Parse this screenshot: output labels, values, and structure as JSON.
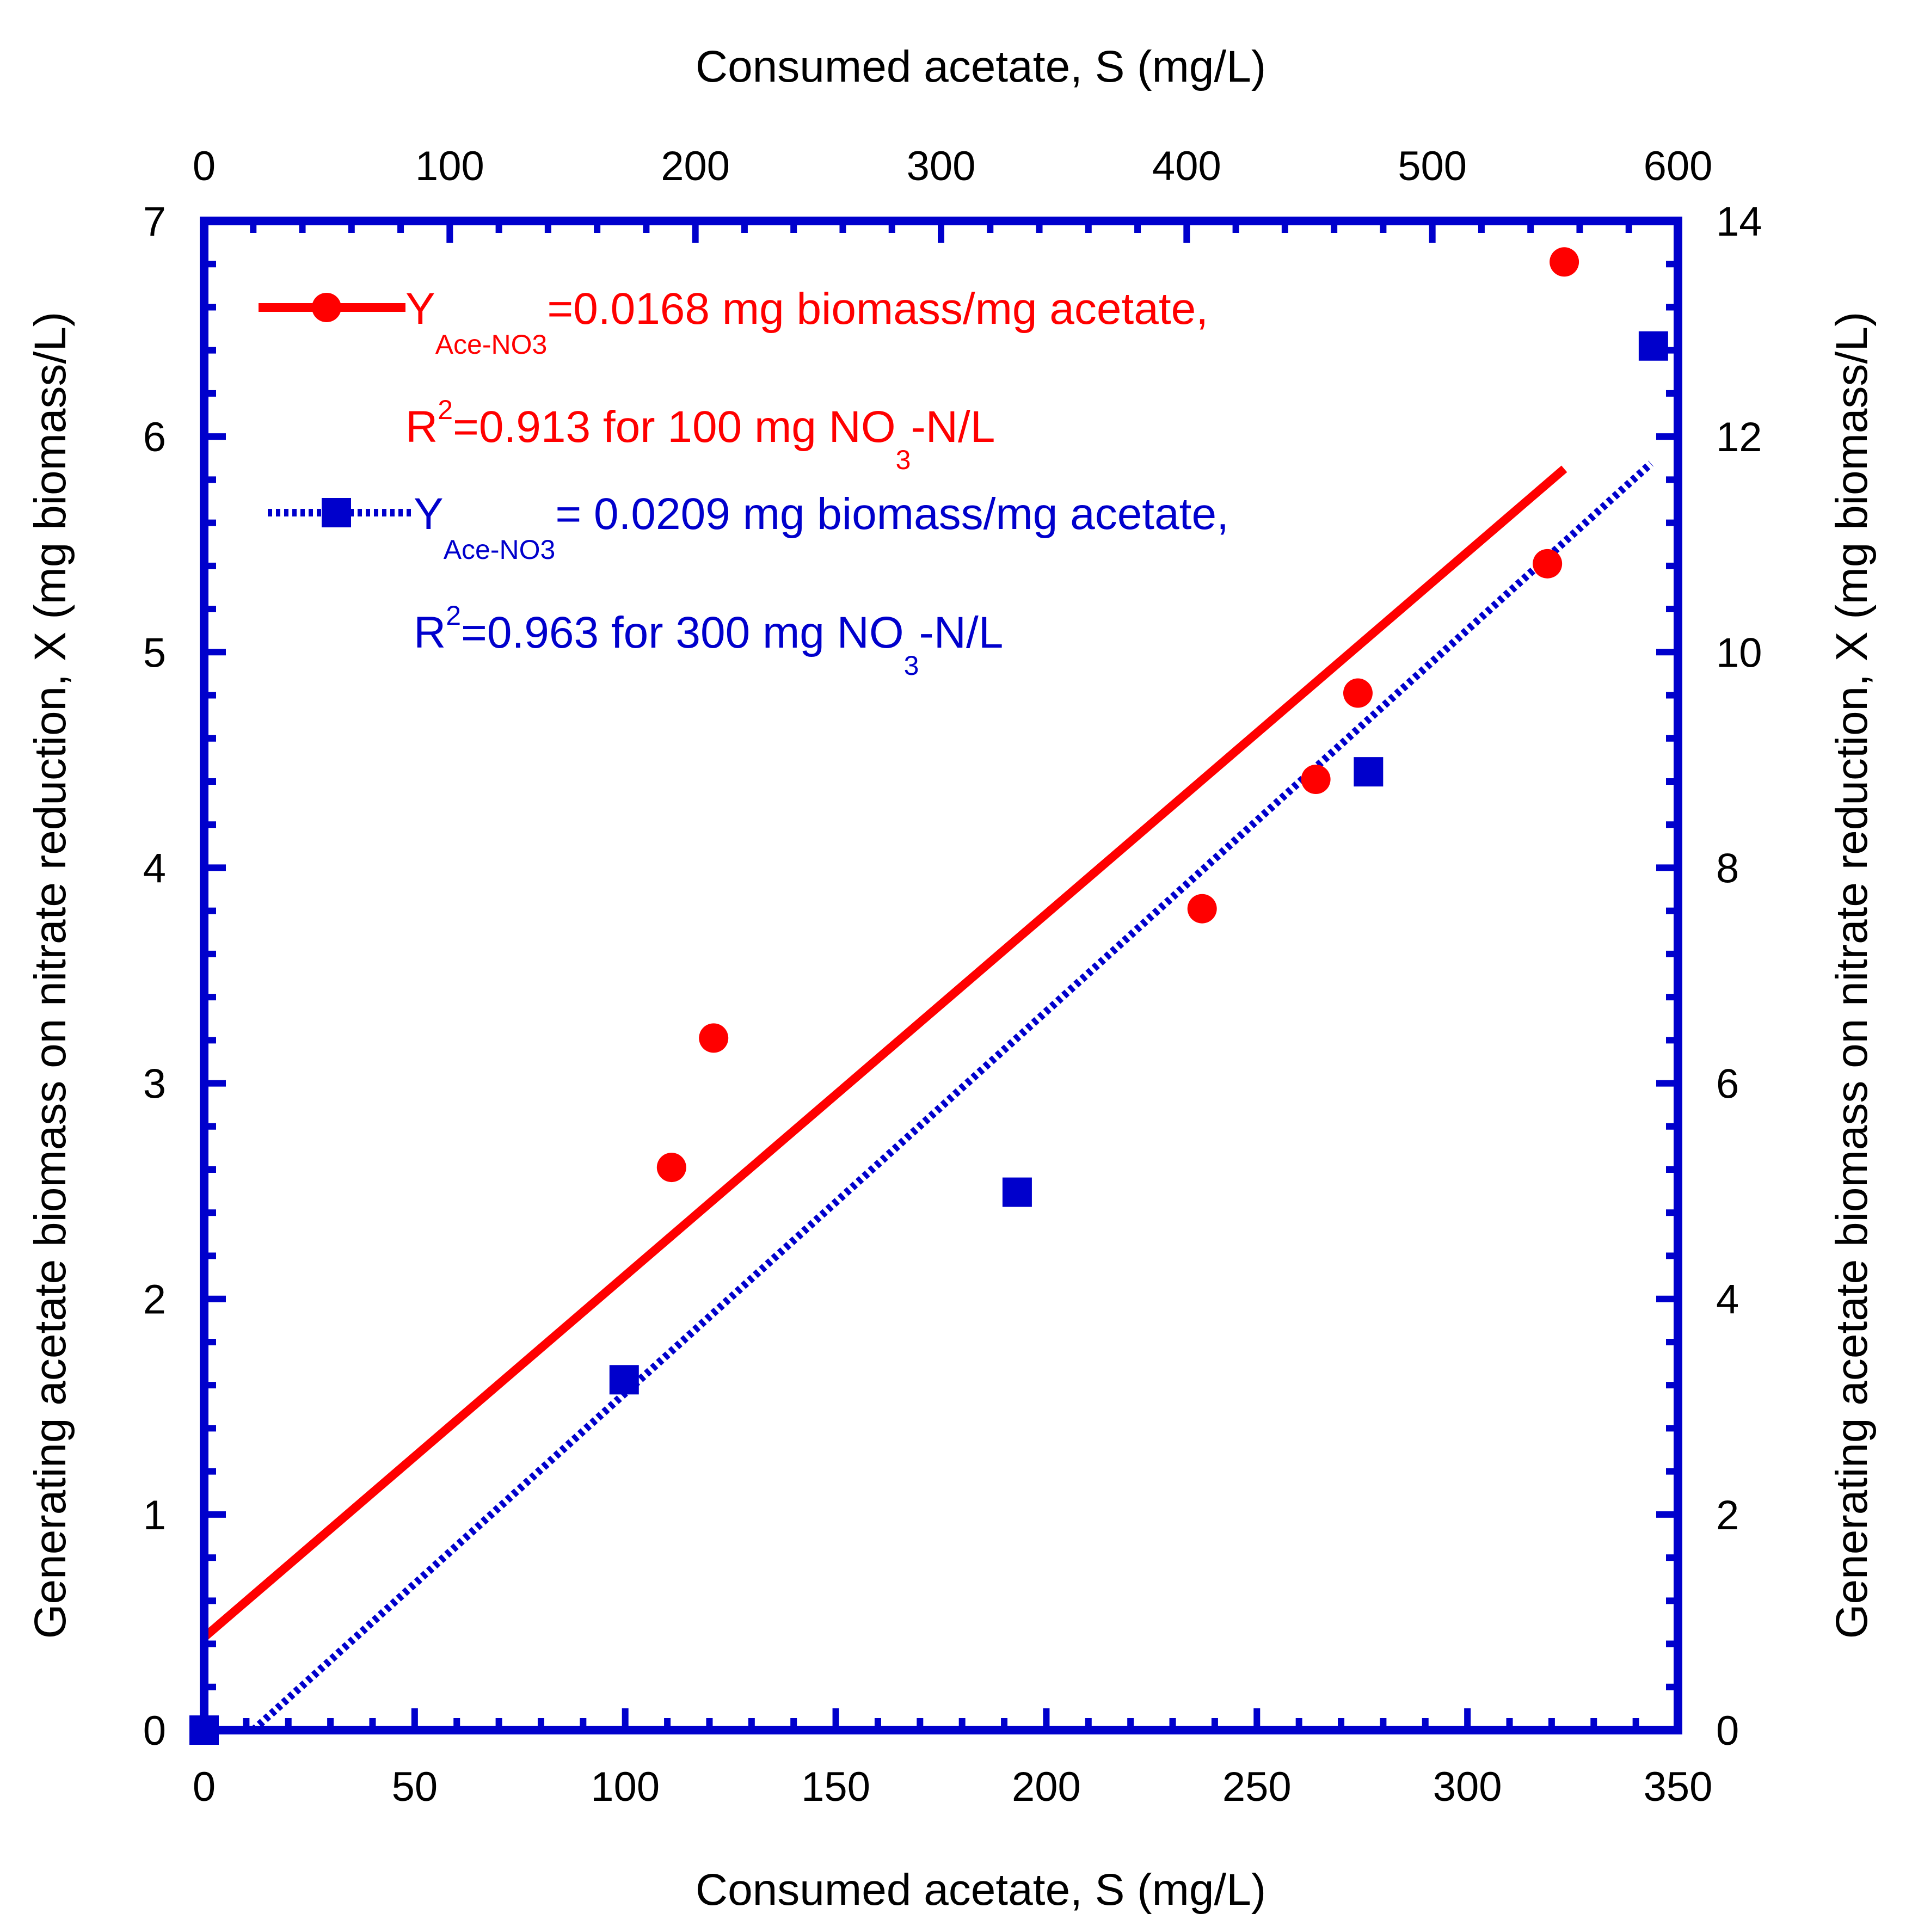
{
  "chart_data": {
    "type": "scatter",
    "axes": {
      "bottom": {
        "label": "Consumed acetate, S (mg/L)",
        "range": [
          0,
          350
        ],
        "ticks": [
          0,
          50,
          100,
          150,
          200,
          250,
          300,
          350
        ]
      },
      "top": {
        "label": "Consumed acetate, S (mg/L)",
        "range": [
          0,
          600
        ],
        "ticks": [
          0,
          100,
          200,
          300,
          400,
          500,
          600
        ]
      },
      "left": {
        "label": "Generating acetate biomass on nitrate reduction, X (mg biomass/L)",
        "range": [
          0,
          7
        ],
        "ticks": [
          0,
          1,
          2,
          3,
          4,
          5,
          6,
          7
        ]
      },
      "right": {
        "label": "Generating acetate biomass on nitrate reduction, X (mg biomass/L)",
        "range": [
          0,
          14
        ],
        "ticks": [
          0,
          2,
          4,
          6,
          8,
          10,
          12,
          14
        ]
      }
    },
    "series": [
      {
        "name": "100 mg NO3-N/L",
        "color": "#ff0000",
        "marker": "circle",
        "x_axis": "bottom",
        "y_axis": "left",
        "points": [
          {
            "x": 0,
            "y": 0
          },
          {
            "x": 111,
            "y": 2.61
          },
          {
            "x": 121,
            "y": 3.21
          },
          {
            "x": 237,
            "y": 3.81
          },
          {
            "x": 264,
            "y": 4.41
          },
          {
            "x": 274,
            "y": 4.81
          },
          {
            "x": 319,
            "y": 5.41
          },
          {
            "x": 323,
            "y": 6.81
          }
        ],
        "fit": {
          "x_start": 0,
          "y_start": 0.43,
          "x_end": 323,
          "y_end": 5.85,
          "style": "solid"
        },
        "legend": {
          "yield_main": "Y",
          "yield_sub": "Ace-NO3",
          "yield_rest": "=0.0168 mg biomass/mg acetate,",
          "r2_main": "R",
          "r2_sup": "2",
          "r2_rest": "=0.913 for 100 mg NO",
          "r2_sub": "3",
          "r2_tail": "-N/L"
        }
      },
      {
        "name": "300 mg NO3-N/L",
        "color": "#0000cc",
        "marker": "square",
        "x_axis": "top",
        "y_axis": "right",
        "points": [
          {
            "x": 0,
            "y": 0
          },
          {
            "x": 171,
            "y": 3.25
          },
          {
            "x": 331,
            "y": 4.99
          },
          {
            "x": 474,
            "y": 8.89
          },
          {
            "x": 590,
            "y": 12.84
          }
        ],
        "fit": {
          "x_start": 20,
          "y_start": 0,
          "x_end": 589,
          "y_end": 11.75,
          "style": "dotted"
        },
        "legend": {
          "yield_main": "Y",
          "yield_sub": "Ace-NO3",
          "yield_rest": "= 0.0209 mg biomass/mg acetate,",
          "r2_main": "R",
          "r2_sup": "2",
          "r2_rest": "=0.963 for 300 mg NO",
          "r2_sub": "3",
          "r2_tail": "-N/L"
        }
      }
    ]
  }
}
